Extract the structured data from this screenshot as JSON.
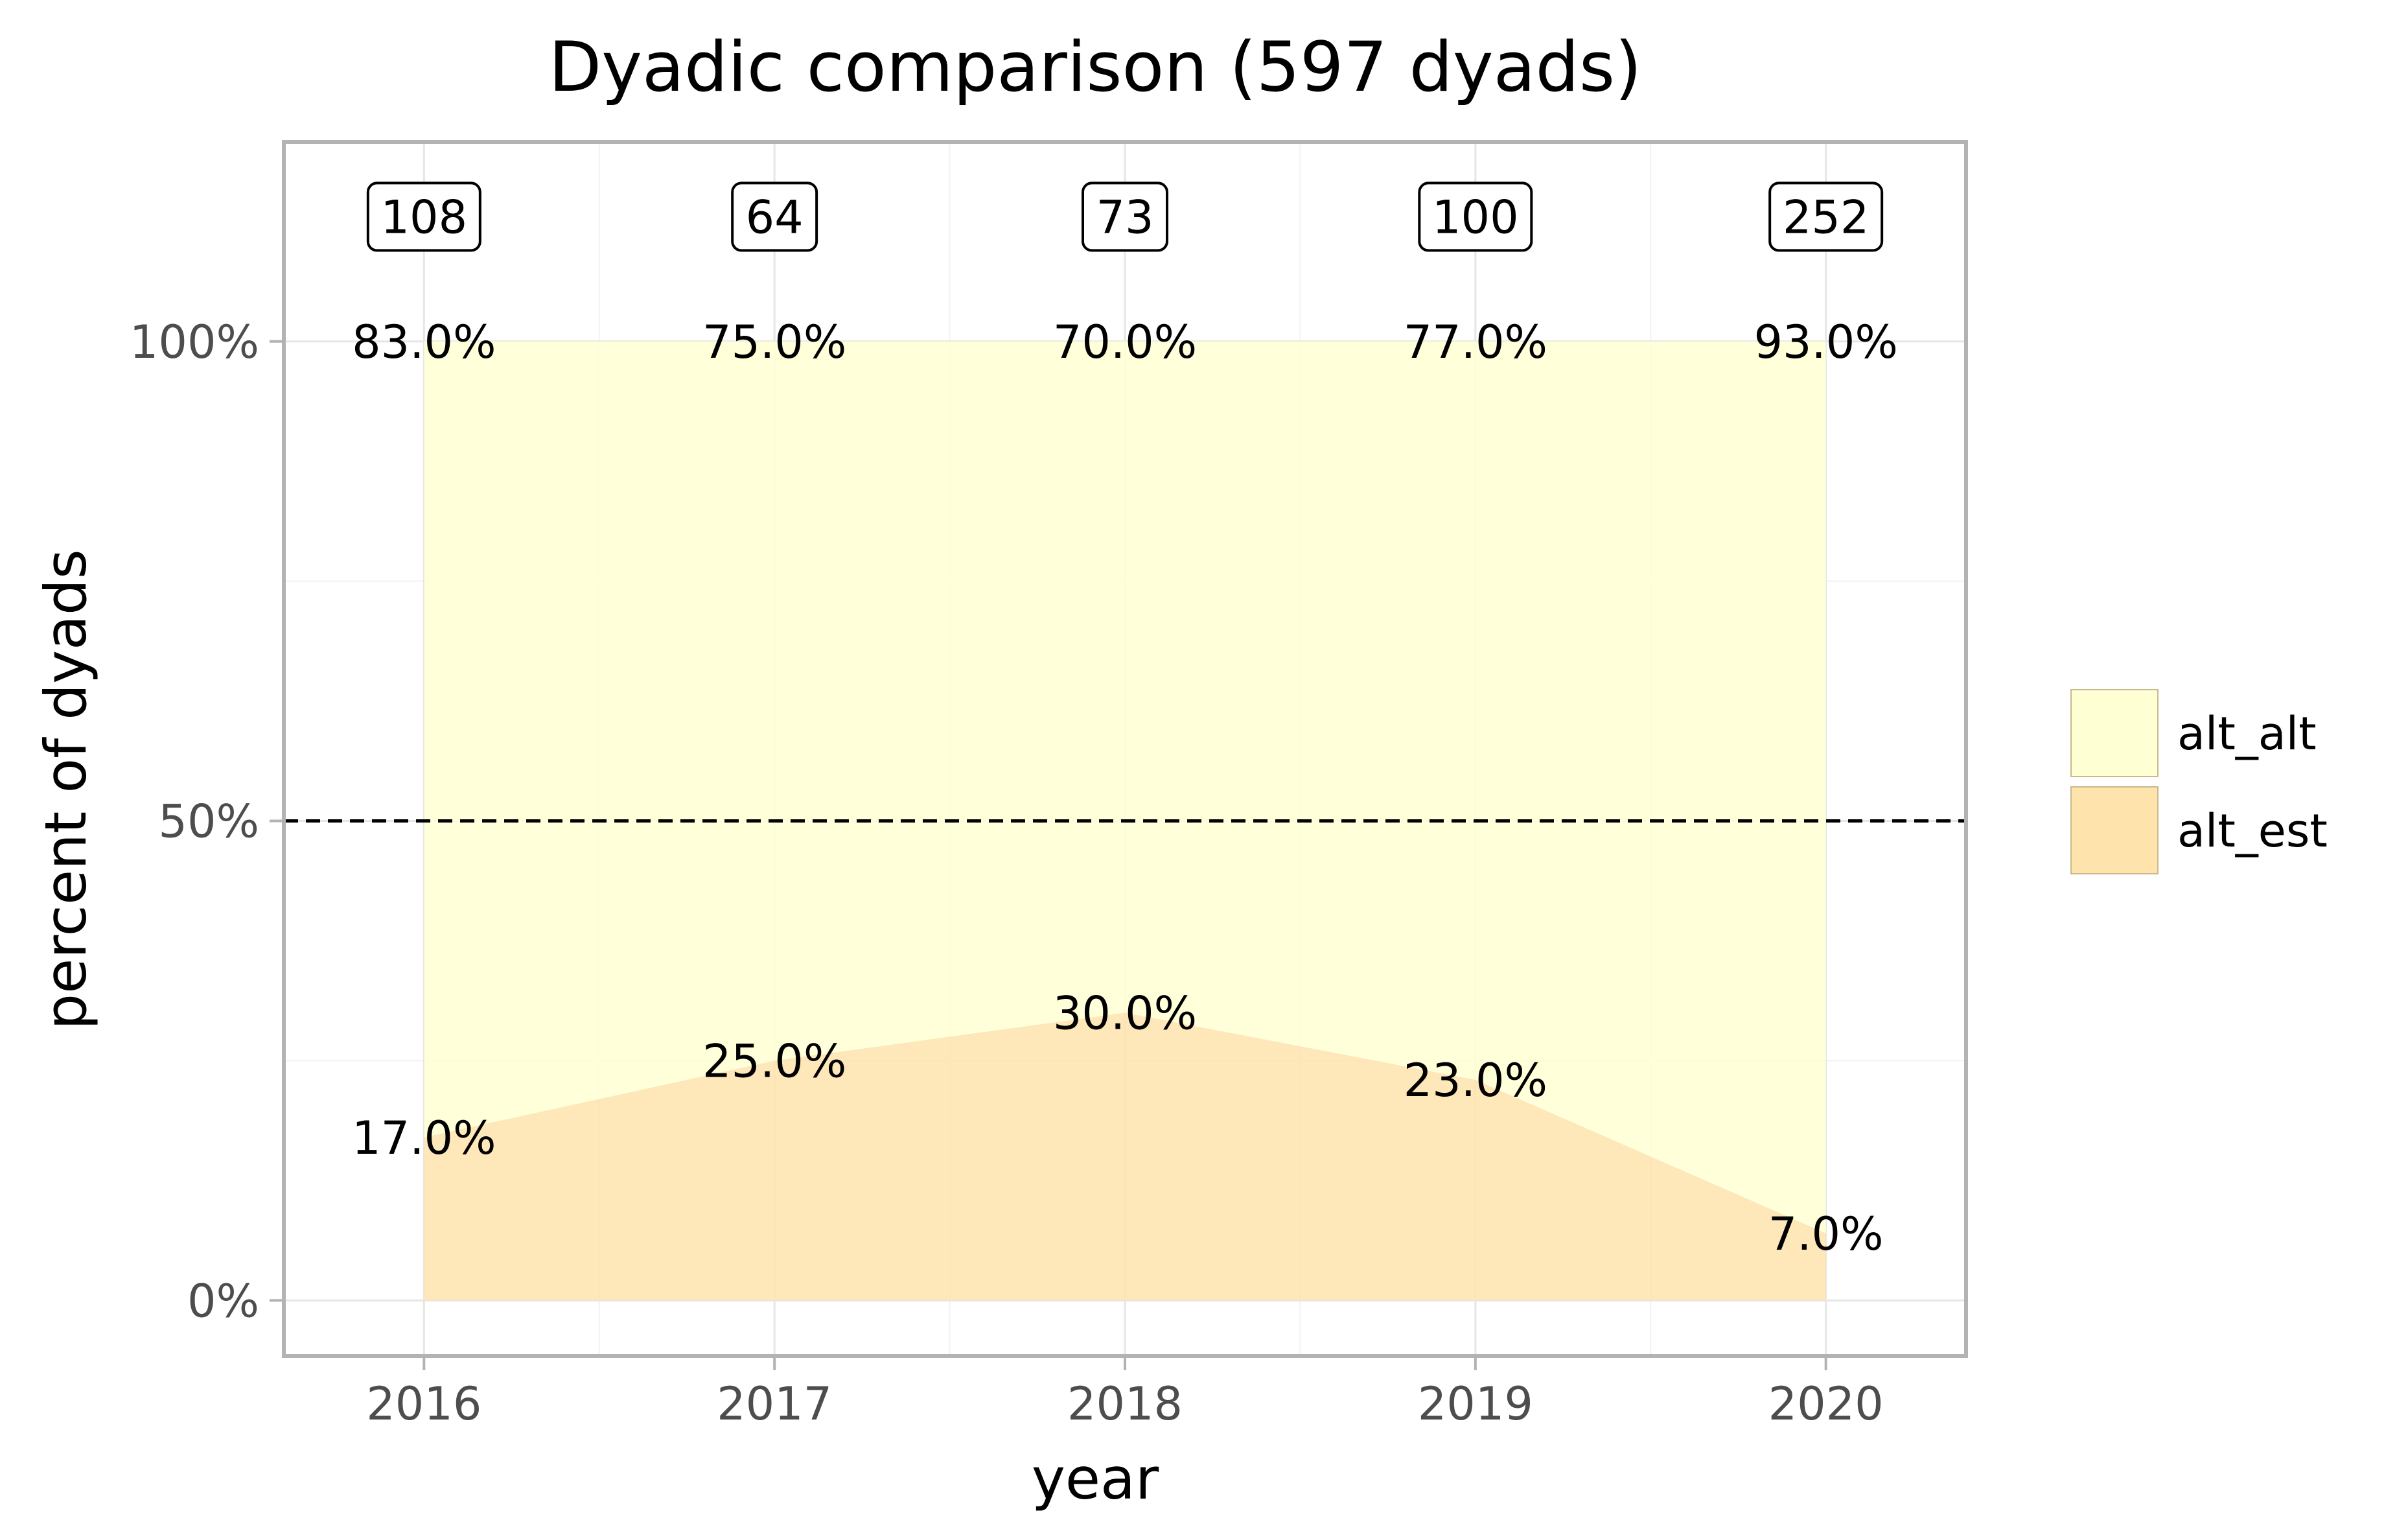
{
  "chart_data": {
    "type": "area",
    "stacked": true,
    "normalized": true,
    "title": "Dyadic comparison (597 dyads)",
    "xlabel": "year",
    "ylabel": "percent of dyads",
    "x": [
      2016,
      2017,
      2018,
      2019,
      2020
    ],
    "x_tick_labels": [
      "2016",
      "2017",
      "2018",
      "2019",
      "2020"
    ],
    "y_ticks": [
      0,
      50,
      100
    ],
    "y_tick_labels": [
      "0%",
      "50%",
      "100%"
    ],
    "ylim": [
      -5.8,
      120.8
    ],
    "xlim": [
      2015.6,
      2020.4
    ],
    "reference_line": 50,
    "grid": true,
    "legend_position": "right",
    "series": [
      {
        "name": "alt_est",
        "color": "#fee3ac",
        "values": [
          17.0,
          25.0,
          30.0,
          23.0,
          7.0
        ],
        "labels": [
          "17.0%",
          "25.0%",
          "30.0%",
          "23.0%",
          "7.0%"
        ]
      },
      {
        "name": "alt_alt",
        "color": "#ffffd4",
        "values": [
          83.0,
          75.0,
          70.0,
          77.0,
          93.0
        ],
        "labels": [
          "83.0%",
          "75.0%",
          "70.0%",
          "77.0%",
          "93.0%"
        ]
      }
    ],
    "counts": [
      "108",
      "64",
      "73",
      "100",
      "252"
    ],
    "legend": [
      {
        "name": "alt_alt",
        "color": "#ffffd4"
      },
      {
        "name": "alt_est",
        "color": "#fee3ac"
      }
    ]
  }
}
